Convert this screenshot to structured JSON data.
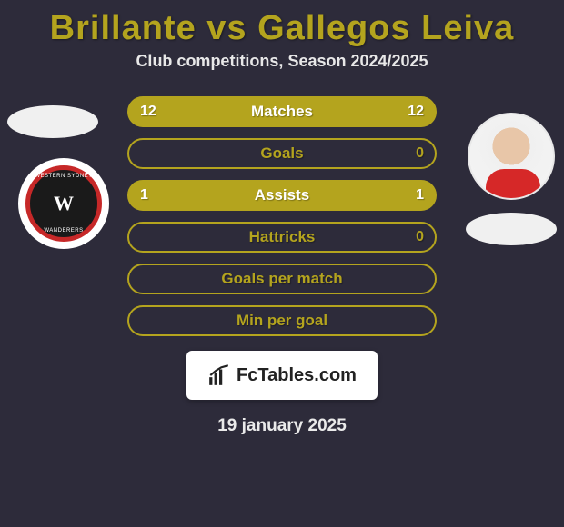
{
  "background_color": "#2d2b3a",
  "title": {
    "text": "Brillante vs Gallegos Leiva",
    "color": "#b4a41e",
    "fontsize": 38,
    "fontweight": 800
  },
  "subtitle": {
    "text": "Club competitions, Season 2024/2025",
    "fontsize": 18
  },
  "date": "19 january 2025",
  "bar_style": {
    "height": 34,
    "border_radius": 17,
    "label_fontsize": 17
  },
  "bars": [
    {
      "label": "Matches",
      "left": "12",
      "right": "12",
      "fill": "#b4a41e",
      "border": "#b4a41e",
      "text": "#ffffff"
    },
    {
      "label": "Goals",
      "left": "",
      "right": "0",
      "fill": "transparent",
      "border": "#b4a41e",
      "text": "#b4a41e"
    },
    {
      "label": "Assists",
      "left": "1",
      "right": "1",
      "fill": "#b4a41e",
      "border": "#b4a41e",
      "text": "#ffffff"
    },
    {
      "label": "Hattricks",
      "left": "",
      "right": "0",
      "fill": "transparent",
      "border": "#b4a41e",
      "text": "#b4a41e"
    },
    {
      "label": "Goals per match",
      "left": "",
      "right": "",
      "fill": "transparent",
      "border": "#b4a41e",
      "text": "#b4a41e"
    },
    {
      "label": "Min per goal",
      "left": "",
      "right": "",
      "fill": "transparent",
      "border": "#b4a41e",
      "text": "#b4a41e"
    }
  ],
  "logo": {
    "brand": "FcTables.com",
    "icon": "chart-icon"
  },
  "left_badge": {
    "team": "Western Sydney Wanderers",
    "monogram": "W",
    "outer_color": "#c62828",
    "inner_color": "#1a1a1a"
  }
}
